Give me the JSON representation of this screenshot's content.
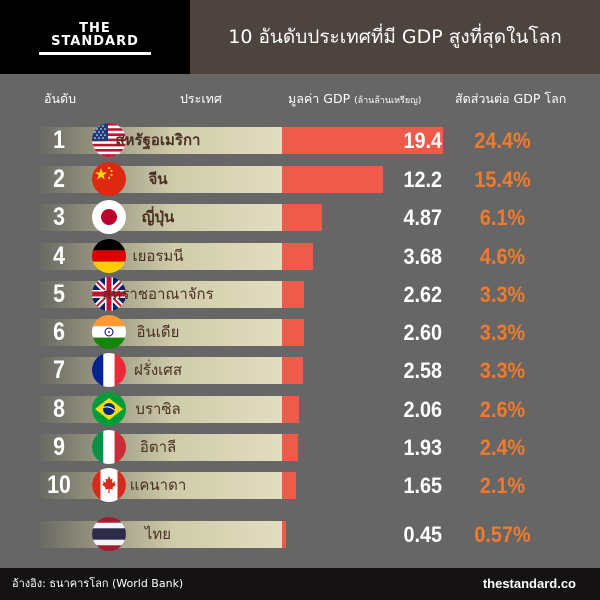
{
  "header": {
    "logo_line1": "THE",
    "logo_line2": "STANDARD",
    "title": "10 อันดับประเทศที่มี GDP สูงที่สุดในโลก"
  },
  "columns": {
    "rank": "อันดับ",
    "country": "ประเทศ",
    "gdp": "มูลค่า GDP",
    "gdp_unit": "(ล้านล้านเหรียญ)",
    "share": "สัดส่วนต่อ GDP โลก"
  },
  "colors": {
    "bar": "#f05a4a",
    "share_text": "#f27a2a",
    "background": "#666666",
    "header_bg": "#4d4440"
  },
  "rows": [
    {
      "rank": "1",
      "country": "สหรัฐอเมริกา",
      "gdp": "19.4",
      "share": "24.4%",
      "flag": "usa-flag-icon"
    },
    {
      "rank": "2",
      "country": "จีน",
      "gdp": "12.2",
      "share": "15.4%",
      "flag": "china-flag-icon"
    },
    {
      "rank": "3",
      "country": "ญี่ปุ่น",
      "gdp": "4.87",
      "share": "6.1%",
      "flag": "japan-flag-icon"
    },
    {
      "rank": "4",
      "country": "เยอรมนี",
      "gdp": "3.68",
      "share": "4.6%",
      "flag": "germany-flag-icon"
    },
    {
      "rank": "5",
      "country": "สหราชอาณาจักร",
      "gdp": "2.62",
      "share": "3.3%",
      "flag": "uk-flag-icon"
    },
    {
      "rank": "6",
      "country": "อินเดีย",
      "gdp": "2.60",
      "share": "3.3%",
      "flag": "india-flag-icon"
    },
    {
      "rank": "7",
      "country": "ฝรั่งเศส",
      "gdp": "2.58",
      "share": "3.3%",
      "flag": "france-flag-icon"
    },
    {
      "rank": "8",
      "country": "บราซิล",
      "gdp": "2.06",
      "share": "2.6%",
      "flag": "brazil-flag-icon"
    },
    {
      "rank": "9",
      "country": "อิตาลี",
      "gdp": "1.93",
      "share": "2.4%",
      "flag": "italy-flag-icon"
    },
    {
      "rank": "10",
      "country": "แคนาดา",
      "gdp": "1.65",
      "share": "2.1%",
      "flag": "canada-flag-icon"
    },
    {
      "rank": "",
      "country": "ไทย",
      "gdp": "0.45",
      "share": "0.57%",
      "flag": "thailand-flag-icon"
    }
  ],
  "footer": {
    "source": "อ้างอิง: ธนาคารโลก (World Bank)",
    "site": "thestandard.co"
  },
  "chart_data": {
    "type": "bar",
    "title": "10 อันดับประเทศที่มี GDP สูงที่สุดในโลก",
    "xlabel": "",
    "ylabel": "มูลค่า GDP (ล้านล้านเหรียญ)",
    "orientation": "horizontal",
    "categories": [
      "สหรัฐอเมริกา",
      "จีน",
      "ญี่ปุ่น",
      "เยอรมนี",
      "สหราชอาณาจักร",
      "อินเดีย",
      "ฝรั่งเศส",
      "บราซิล",
      "อิตาลี",
      "แคนาดา",
      "ไทย"
    ],
    "series": [
      {
        "name": "มูลค่า GDP (ล้านล้านเหรียญ)",
        "values": [
          19.4,
          12.2,
          4.87,
          3.68,
          2.62,
          2.6,
          2.58,
          2.06,
          1.93,
          1.65,
          0.45
        ]
      },
      {
        "name": "สัดส่วนต่อ GDP โลก (%)",
        "values": [
          24.4,
          15.4,
          6.1,
          4.6,
          3.3,
          3.3,
          3.3,
          2.6,
          2.4,
          2.1,
          0.57
        ]
      }
    ],
    "grid": false,
    "legend": "none"
  }
}
